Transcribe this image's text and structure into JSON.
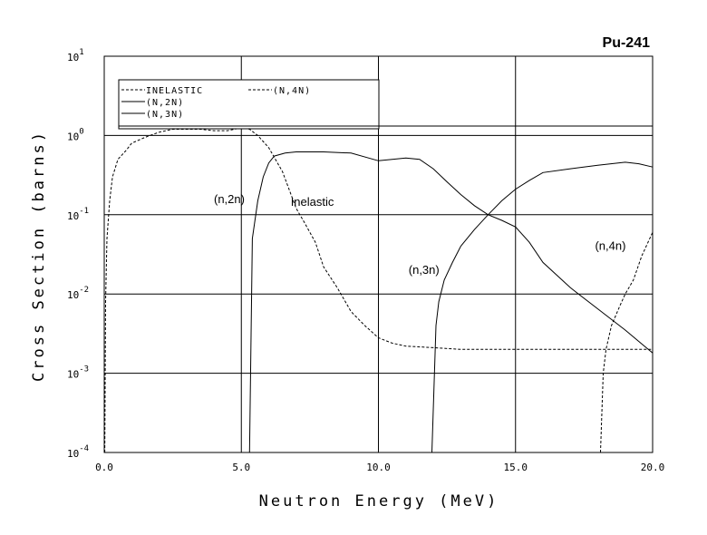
{
  "chart_data": {
    "type": "line",
    "title": "Pu-241",
    "xlabel": "Neutron Energy (MeV)",
    "ylabel": "Cross Section (barns)",
    "xlim": [
      0,
      20
    ],
    "ylim_log10": [
      -4,
      1
    ],
    "yscale": "log",
    "grid": true,
    "legend_position": "top-left",
    "x_ticks": [
      "0.0",
      "5.0",
      "10.0",
      "15.0",
      "20.0"
    ],
    "y_ticks": [
      {
        "base": "10",
        "exp": "1"
      },
      {
        "base": "10",
        "exp": "0"
      },
      {
        "base": "10",
        "exp": "-1"
      },
      {
        "base": "10",
        "exp": "-2"
      },
      {
        "base": "10",
        "exp": "-3"
      },
      {
        "base": "10",
        "exp": "-4"
      }
    ],
    "series": [
      {
        "name": "INELASTIC",
        "style": "dashed",
        "x": [
          0.02,
          0.05,
          0.1,
          0.2,
          0.3,
          0.5,
          0.8,
          1.0,
          1.5,
          2.0,
          2.5,
          3.0,
          3.5,
          4.0,
          4.5,
          5.0,
          5.3,
          5.6,
          6.0,
          6.5,
          7.0,
          7.3,
          7.7,
          8.0,
          8.5,
          9.0,
          9.5,
          10.0,
          10.5,
          11.0,
          12.0,
          13.0,
          14.0,
          15.0,
          16.0,
          17.0,
          18.0,
          19.0,
          19.5,
          20.0
        ],
        "y": [
          0.0001,
          0.008,
          0.05,
          0.15,
          0.3,
          0.5,
          0.65,
          0.8,
          0.95,
          1.1,
          1.2,
          1.2,
          1.2,
          1.15,
          1.15,
          1.25,
          1.2,
          1.0,
          0.7,
          0.35,
          0.12,
          0.08,
          0.045,
          0.022,
          0.012,
          0.006,
          0.004,
          0.0028,
          0.0024,
          0.0022,
          0.0021,
          0.002,
          0.002,
          0.002,
          0.002,
          0.002,
          0.002,
          0.002,
          0.002,
          0.002
        ]
      },
      {
        "name": "(N,2N)",
        "style": "solid",
        "x": [
          5.3,
          5.4,
          5.6,
          5.8,
          6.0,
          6.2,
          6.6,
          7.0,
          8.0,
          9.0,
          10.0,
          11.0,
          11.5,
          12.0,
          12.5,
          13.0,
          13.5,
          14.0,
          14.5,
          15.0,
          15.5,
          16.0,
          17.0,
          18.0,
          19.0,
          20.0
        ],
        "y": [
          0.0001,
          0.05,
          0.15,
          0.3,
          0.45,
          0.55,
          0.6,
          0.62,
          0.62,
          0.6,
          0.48,
          0.52,
          0.5,
          0.38,
          0.26,
          0.18,
          0.13,
          0.1,
          0.085,
          0.07,
          0.045,
          0.025,
          0.012,
          0.0065,
          0.0035,
          0.0018
        ]
      },
      {
        "name": "(N,3N)",
        "style": "solid",
        "x": [
          11.95,
          12.1,
          12.2,
          12.4,
          12.7,
          13.0,
          13.5,
          14.0,
          14.5,
          15.0,
          15.5,
          16.0,
          17.0,
          18.0,
          19.0,
          19.5,
          20.0
        ],
        "y": [
          0.0001,
          0.004,
          0.008,
          0.015,
          0.025,
          0.04,
          0.065,
          0.1,
          0.15,
          0.21,
          0.27,
          0.34,
          0.38,
          0.42,
          0.46,
          0.44,
          0.4
        ]
      },
      {
        "name": "(N,4N)",
        "style": "dashed",
        "x": [
          18.1,
          18.2,
          18.3,
          18.5,
          18.8,
          19.0,
          19.3,
          19.6,
          20.0
        ],
        "y": [
          0.0001,
          0.001,
          0.002,
          0.004,
          0.007,
          0.01,
          0.015,
          0.03,
          0.06
        ]
      }
    ],
    "annotations": [
      {
        "text": "(n,2n)",
        "x": 4.0,
        "y": 0.14
      },
      {
        "text": "Inelastic",
        "x": 6.8,
        "y": 0.13
      },
      {
        "text": "(n,3n)",
        "x": 11.1,
        "y": 0.018
      },
      {
        "text": "(n,4n)",
        "x": 17.9,
        "y": 0.036
      }
    ]
  }
}
